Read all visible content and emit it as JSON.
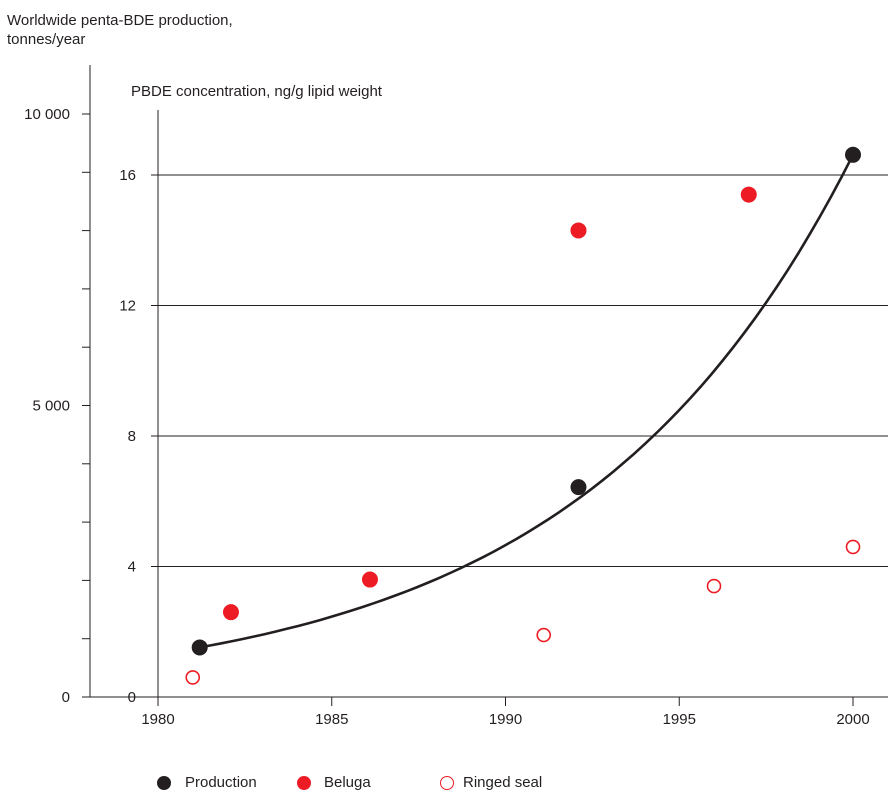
{
  "chart_data": {
    "type": "scatter",
    "left_axis_title": "Worldwide penta-BDE production,\ntonnes/year",
    "right_axis_title": "PBDE concentration, ng/g lipid weight",
    "x_ticks": [
      "1980",
      "1985",
      "1990",
      "1995",
      "2000"
    ],
    "xlim": [
      1980,
      2001
    ],
    "left_ylim": [
      0,
      10000
    ],
    "left_ticks": [
      "0",
      "5 000",
      "10 000"
    ],
    "right_ylim": [
      0,
      17.8
    ],
    "right_ticks": [
      "0",
      "4",
      "8",
      "12",
      "16"
    ],
    "grid": "horizontal at right-axis ticks",
    "legend_position": "bottom",
    "series": [
      {
        "name": "Production",
        "axis": "left",
        "marker": "filled",
        "color": "#231f20",
        "points": [
          {
            "x": 1981.2,
            "y": 850
          },
          {
            "x": 1992.1,
            "y": 3600
          },
          {
            "x": 2000.0,
            "y": 9300
          }
        ],
        "fit_curve": true
      },
      {
        "name": "Beluga",
        "axis": "right",
        "marker": "filled",
        "color": "#ed1c24",
        "points": [
          {
            "x": 1982.1,
            "y": 2.6
          },
          {
            "x": 1986.1,
            "y": 3.6
          },
          {
            "x": 1992.1,
            "y": 14.3
          },
          {
            "x": 1997.0,
            "y": 15.4
          }
        ]
      },
      {
        "name": "Ringed seal",
        "axis": "right",
        "marker": "hollow",
        "color": "#ed1c24",
        "points": [
          {
            "x": 1981.0,
            "y": 0.6
          },
          {
            "x": 1991.1,
            "y": 1.9
          },
          {
            "x": 1996.0,
            "y": 3.4
          },
          {
            "x": 2000.0,
            "y": 4.6
          }
        ]
      }
    ]
  }
}
